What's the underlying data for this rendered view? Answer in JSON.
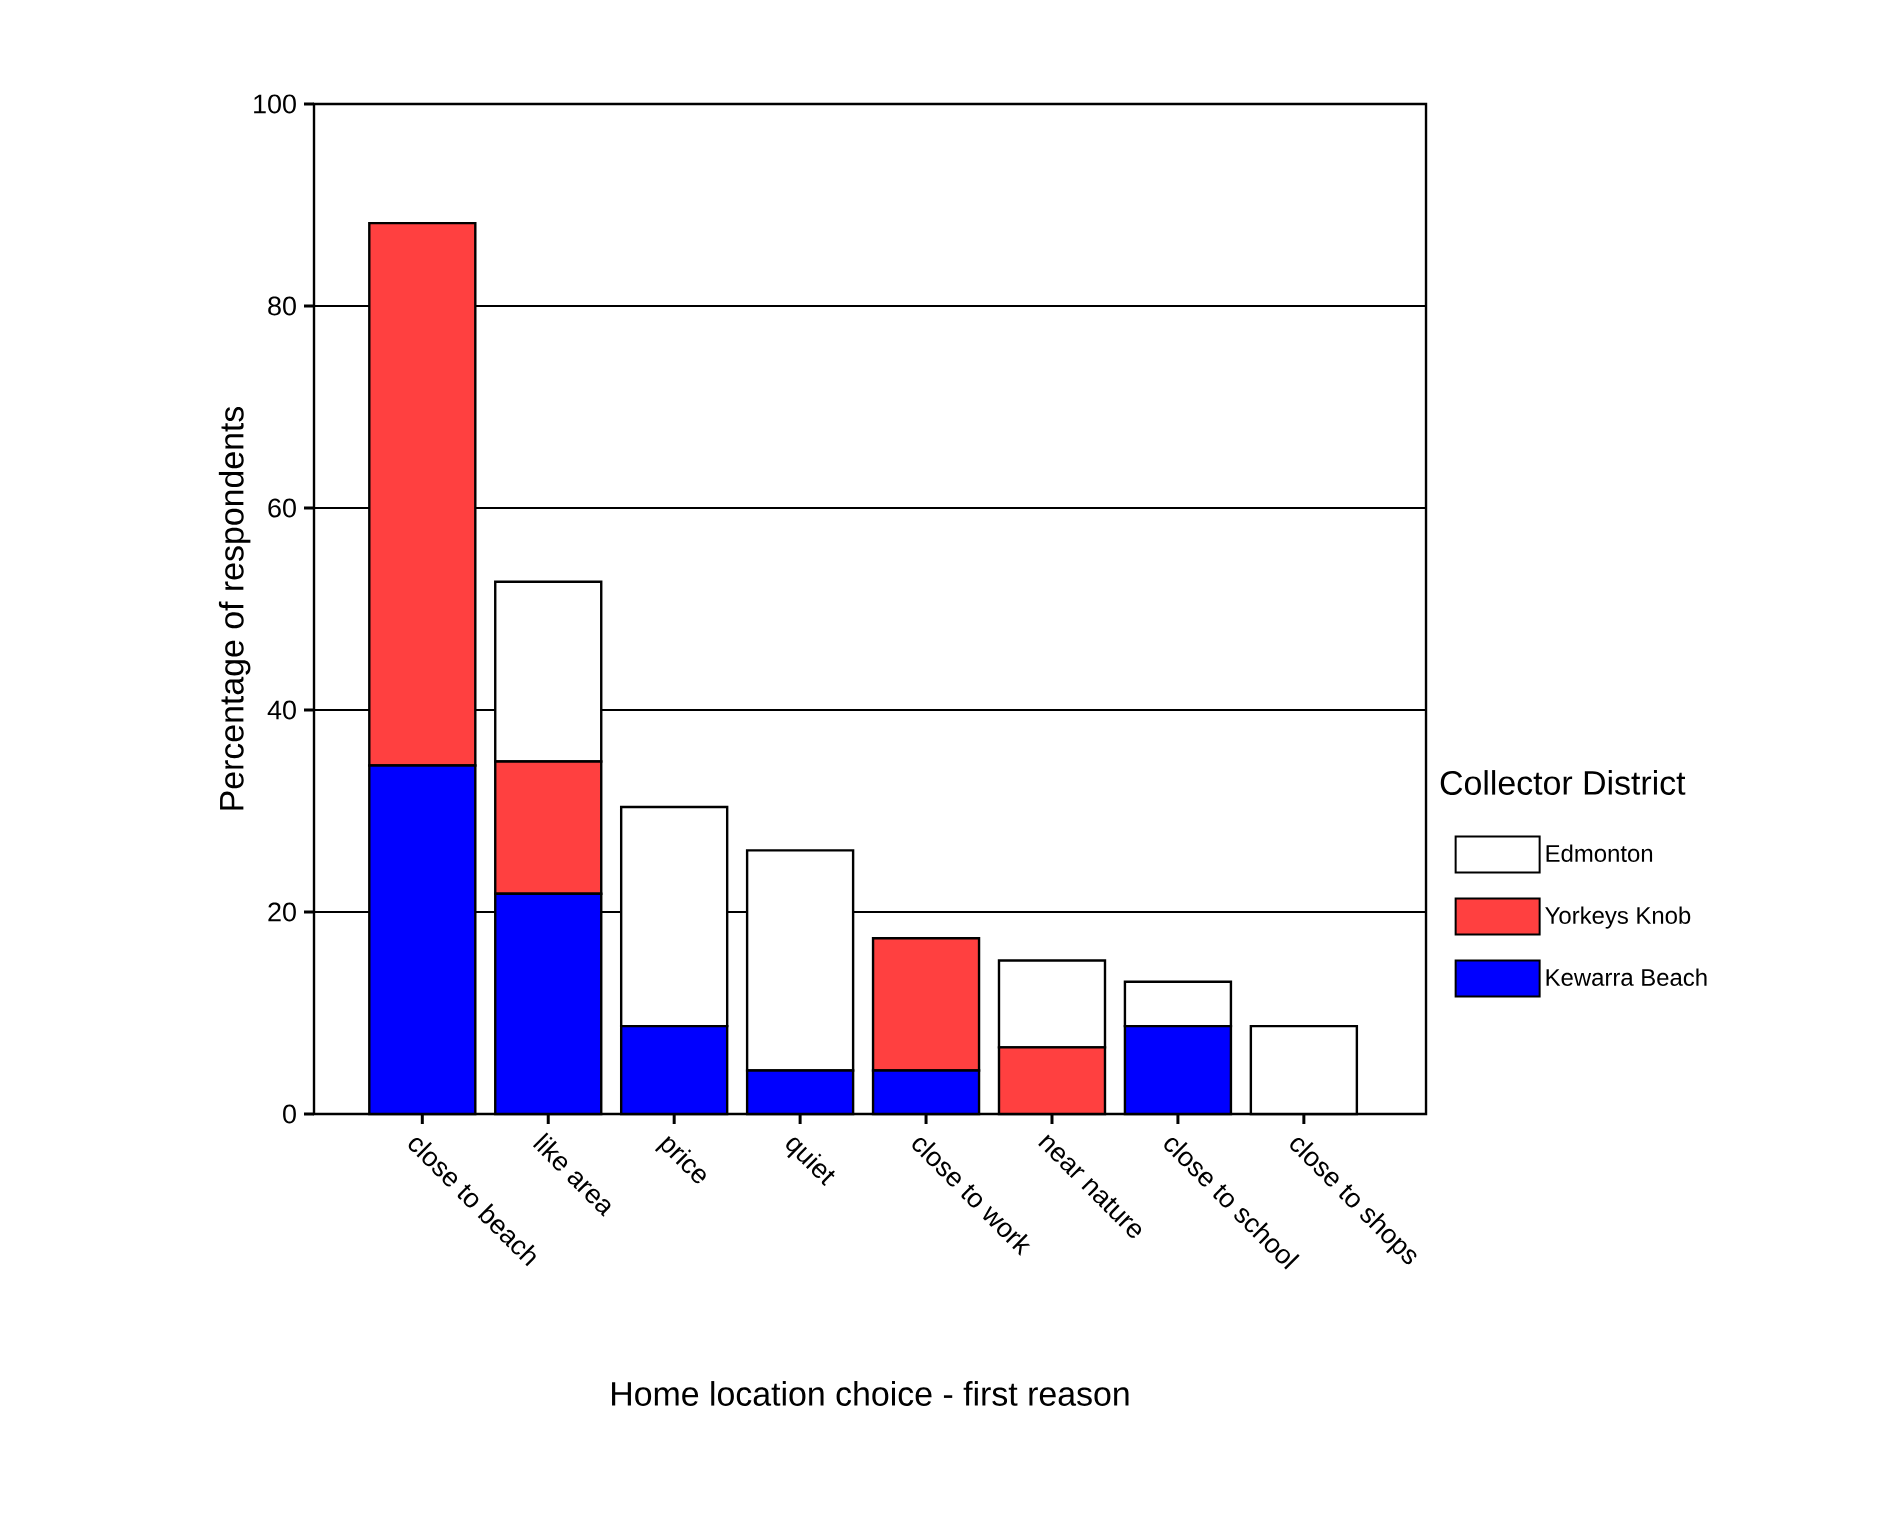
{
  "chart_data": {
    "type": "bar",
    "stacked": true,
    "xlabel": "Home location choice - first reason",
    "ylabel": "Percentage of respondents",
    "legend_title": "Collector District",
    "categories": [
      "close to beach",
      "like area",
      "price",
      "quiet",
      "close to work",
      "near nature",
      "close to school",
      "close to shops"
    ],
    "series": [
      {
        "name": "Kewarra Beach",
        "color": "#0000ff",
        "values": [
          34.5,
          21.8,
          8.7,
          4.3,
          4.3,
          0,
          8.7,
          0
        ]
      },
      {
        "name": "Yorkeys Knob",
        "color": "#ff4040",
        "values": [
          53.7,
          13.1,
          0,
          0,
          13.1,
          6.6,
          0,
          0
        ]
      },
      {
        "name": "Edmonton",
        "color": "#ffffff",
        "values": [
          0,
          17.8,
          21.7,
          21.8,
          0,
          8.6,
          4.4,
          8.7
        ]
      }
    ],
    "ylim": [
      0,
      100
    ],
    "yticks": [
      0,
      20,
      40,
      60,
      80,
      100
    ],
    "grid": "y",
    "legend": "right"
  }
}
